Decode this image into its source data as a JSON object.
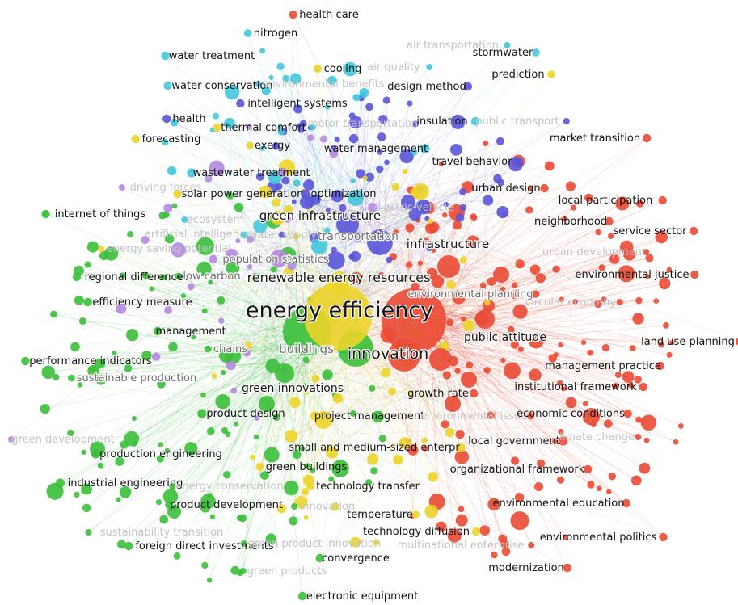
{
  "colors": {
    "red": "#ea4a34",
    "green": "#3bbf3a",
    "blue": "#5b55d8",
    "yellow": "#ecd42a",
    "cyan": "#40c8dc",
    "purple": "#b58ae0"
  },
  "clusters": [
    {
      "name": "red",
      "color": "#ea4a34"
    },
    {
      "name": "green",
      "color": "#3bbf3a"
    },
    {
      "name": "blue",
      "color": "#5b55d8"
    },
    {
      "name": "yellow",
      "color": "#ecd42a"
    },
    {
      "name": "cyan",
      "color": "#40c8dc"
    },
    {
      "name": "purple",
      "color": "#b58ae0"
    }
  ],
  "terms": [
    {
      "label": "energy efficiency",
      "cluster": "yellow",
      "weight": 100
    },
    {
      "label": "innovation",
      "cluster": "red",
      "weight": 70
    },
    {
      "label": "buildings",
      "cluster": "green",
      "weight": 40
    },
    {
      "label": "renewable energy resources",
      "cluster": "yellow",
      "weight": 30
    },
    {
      "label": "green infrastructure",
      "cluster": "blue",
      "weight": 24
    },
    {
      "label": "transportation",
      "cluster": "blue",
      "weight": 22
    },
    {
      "label": "infrastructure",
      "cluster": "red",
      "weight": 22
    },
    {
      "label": "green innovations",
      "cluster": "green",
      "weight": 20
    },
    {
      "label": "public attitude",
      "cluster": "red",
      "weight": 14
    },
    {
      "label": "health care",
      "cluster": "red",
      "weight": 8
    },
    {
      "label": "nitrogen",
      "cluster": "cyan",
      "weight": 7
    },
    {
      "label": "air transportation",
      "cluster": "cyan",
      "weight": 5
    },
    {
      "label": "stormwater",
      "cluster": "cyan",
      "weight": 7
    },
    {
      "label": "water treatment",
      "cluster": "cyan",
      "weight": 8
    },
    {
      "label": "cooling",
      "cluster": "yellow",
      "weight": 8
    },
    {
      "label": "air quality",
      "cluster": "cyan",
      "weight": 5
    },
    {
      "label": "prediction",
      "cluster": "yellow",
      "weight": 7
    },
    {
      "label": "water conservation",
      "cluster": "cyan",
      "weight": 8
    },
    {
      "label": "environmental benefits",
      "cluster": "cyan",
      "weight": 5
    },
    {
      "label": "design method",
      "cluster": "blue",
      "weight": 8
    },
    {
      "label": "intelligent systems",
      "cluster": "blue",
      "weight": 8
    },
    {
      "label": "health",
      "cluster": "blue",
      "weight": 8
    },
    {
      "label": "insulation",
      "cluster": "cyan",
      "weight": 8
    },
    {
      "label": "public transport",
      "cluster": "blue",
      "weight": 5
    },
    {
      "label": "thermal comfort",
      "cluster": "yellow",
      "weight": 8
    },
    {
      "label": "motor transportation",
      "cluster": "blue",
      "weight": 6
    },
    {
      "label": "forecasting",
      "cluster": "yellow",
      "weight": 8
    },
    {
      "label": "exergy",
      "cluster": "yellow",
      "weight": 7
    },
    {
      "label": "water management",
      "cluster": "cyan",
      "weight": 9
    },
    {
      "label": "market transition",
      "cluster": "red",
      "weight": 8
    },
    {
      "label": "travel behavior",
      "cluster": "blue",
      "weight": 8
    },
    {
      "label": "wastewater treatment",
      "cluster": "cyan",
      "weight": 9
    },
    {
      "label": "driving forces",
      "cluster": "purple",
      "weight": 5
    },
    {
      "label": "urban design",
      "cluster": "red",
      "weight": 8
    },
    {
      "label": "solar power generation",
      "cluster": "yellow",
      "weight": 8
    },
    {
      "label": "optimization",
      "cluster": "blue",
      "weight": 9
    },
    {
      "label": "local participation",
      "cluster": "red",
      "weight": 8
    },
    {
      "label": "electric vehicle",
      "cluster": "blue",
      "weight": 6
    },
    {
      "label": "internet of things",
      "cluster": "green",
      "weight": 8
    },
    {
      "label": "ecosystem",
      "cluster": "cyan",
      "weight": 5
    },
    {
      "label": "neighborhood",
      "cluster": "red",
      "weight": 8
    },
    {
      "label": "artificial intelligence",
      "cluster": "green",
      "weight": 5
    },
    {
      "label": "water supply",
      "cluster": "cyan",
      "weight": 6
    },
    {
      "label": "service sector",
      "cluster": "red",
      "weight": 8
    },
    {
      "label": "energy saving potential",
      "cluster": "yellow",
      "weight": 5
    },
    {
      "label": "urban development",
      "cluster": "red",
      "weight": 5
    },
    {
      "label": "population statistics",
      "cluster": "purple",
      "weight": 8
    },
    {
      "label": "regional differences",
      "cluster": "green",
      "weight": 8
    },
    {
      "label": "low carbon",
      "cluster": "green",
      "weight": 6
    },
    {
      "label": "environmental justice",
      "cluster": "red",
      "weight": 8
    },
    {
      "label": "environmental planning",
      "cluster": "red",
      "weight": 7
    },
    {
      "label": "efficiency measure",
      "cluster": "green",
      "weight": 8
    },
    {
      "label": "circular economy",
      "cluster": "red",
      "weight": 5
    },
    {
      "label": "management",
      "cluster": "green",
      "weight": 8
    },
    {
      "label": "land use planning",
      "cluster": "red",
      "weight": 8
    },
    {
      "label": "chains",
      "cluster": "green",
      "weight": 6
    },
    {
      "label": "performance indicators",
      "cluster": "green",
      "weight": 8
    },
    {
      "label": "management practice",
      "cluster": "red",
      "weight": 8
    },
    {
      "label": "sustainable production",
      "cluster": "green",
      "weight": 6
    },
    {
      "label": "institutional framework",
      "cluster": "red",
      "weight": 8
    },
    {
      "label": "growth rate",
      "cluster": "red",
      "weight": 8
    },
    {
      "label": "product design",
      "cluster": "green",
      "weight": 9
    },
    {
      "label": "project management",
      "cluster": "yellow",
      "weight": 9
    },
    {
      "label": "environmental issue",
      "cluster": "red",
      "weight": 6
    },
    {
      "label": "economic conditions",
      "cluster": "red",
      "weight": 8
    },
    {
      "label": "green development",
      "cluster": "purple",
      "weight": 5
    },
    {
      "label": "local government",
      "cluster": "red",
      "weight": 9
    },
    {
      "label": "climate change",
      "cluster": "red",
      "weight": 5
    },
    {
      "label": "small and medium-sized enterpr",
      "cluster": "yellow",
      "weight": 9
    },
    {
      "label": "production engineering",
      "cluster": "green",
      "weight": 9
    },
    {
      "label": "green buildings",
      "cluster": "yellow",
      "weight": 8
    },
    {
      "label": "organizational framework",
      "cluster": "red",
      "weight": 8
    },
    {
      "label": "industrial engineering",
      "cluster": "green",
      "weight": 9
    },
    {
      "label": "energy conservation",
      "cluster": "green",
      "weight": 5
    },
    {
      "label": "technology transfer",
      "cluster": "yellow",
      "weight": 8
    },
    {
      "label": "product development",
      "cluster": "green",
      "weight": 8
    },
    {
      "label": "innovation",
      "cluster": "green",
      "weight": 5
    },
    {
      "label": "environmental education",
      "cluster": "red",
      "weight": 8
    },
    {
      "label": "temperature",
      "cluster": "yellow",
      "weight": 7
    },
    {
      "label": "sustainability transition",
      "cluster": "green",
      "weight": 5
    },
    {
      "label": "technology diffusion",
      "cluster": "yellow",
      "weight": 8
    },
    {
      "label": "environmental politics",
      "cluster": "red",
      "weight": 8
    },
    {
      "label": "foreign direct investments",
      "cluster": "green",
      "weight": 8
    },
    {
      "label": "green product innovation",
      "cluster": "green",
      "weight": 5
    },
    {
      "label": "multinational enterprise",
      "cluster": "red",
      "weight": 5
    },
    {
      "label": "convergence",
      "cluster": "green",
      "weight": 8
    },
    {
      "label": "modernization",
      "cluster": "red",
      "weight": 8
    },
    {
      "label": "green products",
      "cluster": "green",
      "weight": 5
    },
    {
      "label": "electronic equipment",
      "cluster": "green",
      "weight": 8
    }
  ]
}
